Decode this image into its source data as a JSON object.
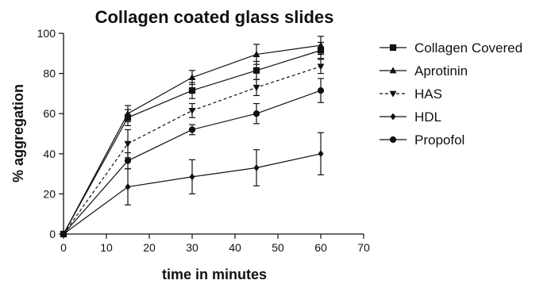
{
  "chart_data": {
    "type": "line",
    "title": "Collagen coated glass slides",
    "xlabel": "time in minutes",
    "ylabel": "% aggregation",
    "xlim": [
      0,
      70
    ],
    "ylim": [
      0,
      100
    ],
    "xticks": [
      0,
      10,
      20,
      30,
      40,
      50,
      60,
      70
    ],
    "yticks": [
      0,
      20,
      40,
      60,
      80,
      100
    ],
    "grid": false,
    "legend_position": "right",
    "x": [
      0,
      15,
      30,
      45,
      60
    ],
    "series": [
      {
        "name": "Collagen Covered",
        "marker": "square",
        "dashed": false,
        "values": [
          0,
          58,
          71.5,
          81.5,
          91.5
        ],
        "errors": [
          0,
          4,
          4,
          4.5,
          4
        ]
      },
      {
        "name": "Aprotinin",
        "marker": "triangle-up",
        "dashed": false,
        "values": [
          0,
          60,
          78,
          89.5,
          94
        ],
        "errors": [
          0,
          4,
          3.5,
          5,
          4.5
        ]
      },
      {
        "name": "HAS",
        "marker": "triangle-down",
        "dashed": true,
        "values": [
          0,
          45,
          61.5,
          73,
          83.5
        ],
        "errors": [
          0,
          7,
          3.5,
          4,
          3.5
        ]
      },
      {
        "name": "HDL",
        "marker": "diamond",
        "dashed": false,
        "values": [
          0,
          23.5,
          28.5,
          33,
          40
        ],
        "errors": [
          0,
          9,
          8.5,
          9,
          10.5
        ]
      },
      {
        "name": "Propofol",
        "marker": "circle",
        "dashed": false,
        "values": [
          0,
          36.5,
          52,
          60,
          71.5
        ],
        "errors": [
          0,
          4,
          2.5,
          5,
          6
        ]
      }
    ]
  }
}
